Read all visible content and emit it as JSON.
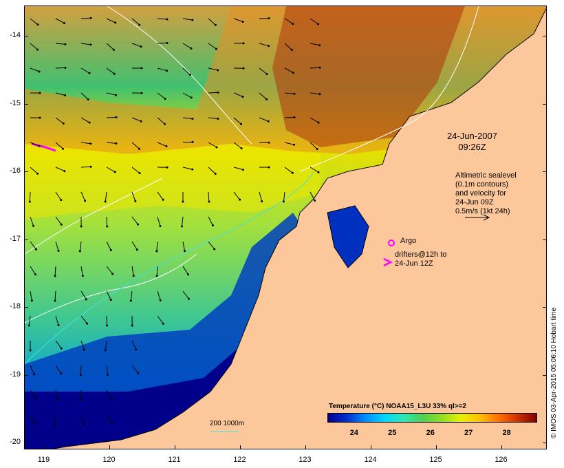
{
  "map": {
    "lat_ticks": [
      "-14",
      "-15",
      "-16",
      "-17",
      "-18",
      "-19",
      "-20"
    ],
    "lon_ticks": [
      "119",
      "120",
      "121",
      "122",
      "123",
      "124",
      "125",
      "126"
    ],
    "lat_range": [
      -20.1,
      -13.55
    ],
    "lon_range": [
      118.7,
      126.7
    ]
  },
  "annotations": {
    "date_line1": "24-Jun-2007",
    "date_line2": "09:26Z",
    "sl_line1": "Altimetric sealevel",
    "sl_line2": "(0.1m contours)",
    "sl_line3": "and velocity for",
    "sl_line4": "24-Jun 09Z",
    "sl_line5": "0.5m/s (1kt 24h)",
    "argo": "Argo",
    "drifter_line1": "drifters@12h to",
    "drifter_line2": "24-Jun 12Z",
    "scale": "200  1000m"
  },
  "credit": "© IMOS 03-Apr-2015 05:06:10 Hobart time",
  "colorbar": {
    "title": "Temperature (°C) NOAA15_L3U 33% ql>=2",
    "ticks": [
      "24",
      "25",
      "26",
      "27",
      "28"
    ],
    "range": [
      23.3,
      28.8
    ],
    "colors": [
      "#000090",
      "#0030d0",
      "#0090ff",
      "#00d8ff",
      "#30e8b0",
      "#50d050",
      "#90e020",
      "#e8f000",
      "#ffc000",
      "#ff7000",
      "#d03000",
      "#800000"
    ]
  }
}
